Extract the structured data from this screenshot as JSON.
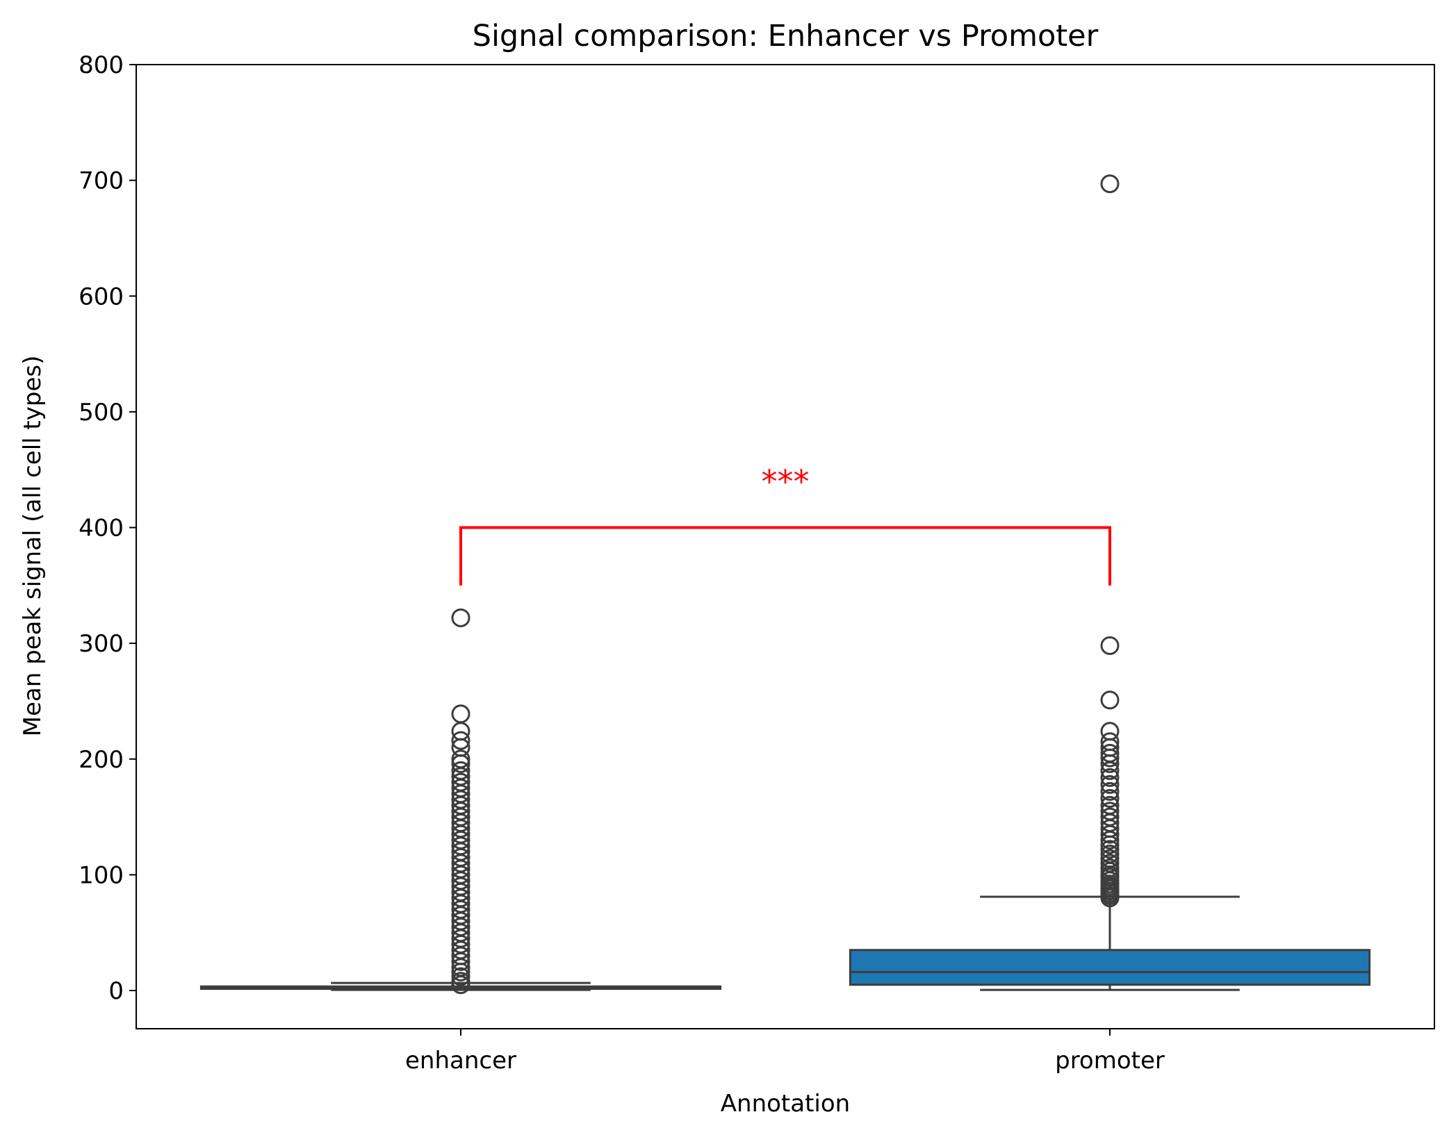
{
  "chart_data": {
    "type": "box",
    "title": "Signal comparison: Enhancer vs Promoter",
    "xlabel": "Annotation",
    "ylabel": "Mean peak signal (all cell types)",
    "ylim": [
      -33,
      800
    ],
    "yticks": [
      0,
      100,
      200,
      300,
      400,
      500,
      600,
      700,
      800
    ],
    "grid": false,
    "legend": "none",
    "categories": [
      "enhancer",
      "promoter"
    ],
    "boxes": [
      {
        "category": "enhancer",
        "whisker_low": 0.5,
        "q1": 1.5,
        "median": 2.2,
        "q3": 3.5,
        "whisker_high": 6.5,
        "fill": "#1f77b4",
        "outliers": [
          5,
          8,
          12,
          16,
          20,
          25,
          30,
          35,
          40,
          45,
          50,
          55,
          60,
          65,
          70,
          75,
          80,
          85,
          90,
          95,
          100,
          105,
          110,
          115,
          120,
          125,
          130,
          135,
          140,
          145,
          150,
          155,
          160,
          165,
          170,
          175,
          180,
          185,
          190,
          196,
          200,
          210,
          216,
          224,
          239,
          322
        ]
      },
      {
        "category": "promoter",
        "whisker_low": 0.5,
        "q1": 5,
        "median": 16,
        "q3": 35,
        "whisker_high": 81,
        "fill": "#1f77b4",
        "outliers": [
          80,
          82,
          84,
          86,
          88,
          90,
          92,
          95,
          98,
          100,
          103,
          106,
          110,
          114,
          118,
          122,
          126,
          130,
          135,
          140,
          145,
          150,
          155,
          160,
          166,
          172,
          178,
          184,
          190,
          196,
          201,
          205,
          210,
          215,
          224,
          251,
          298,
          697
        ]
      }
    ],
    "annotation": {
      "label": "***",
      "y_bracket": 400,
      "y_tick_end": 350,
      "between": [
        "enhancer",
        "promoter"
      ],
      "color": "#ff0000"
    }
  }
}
